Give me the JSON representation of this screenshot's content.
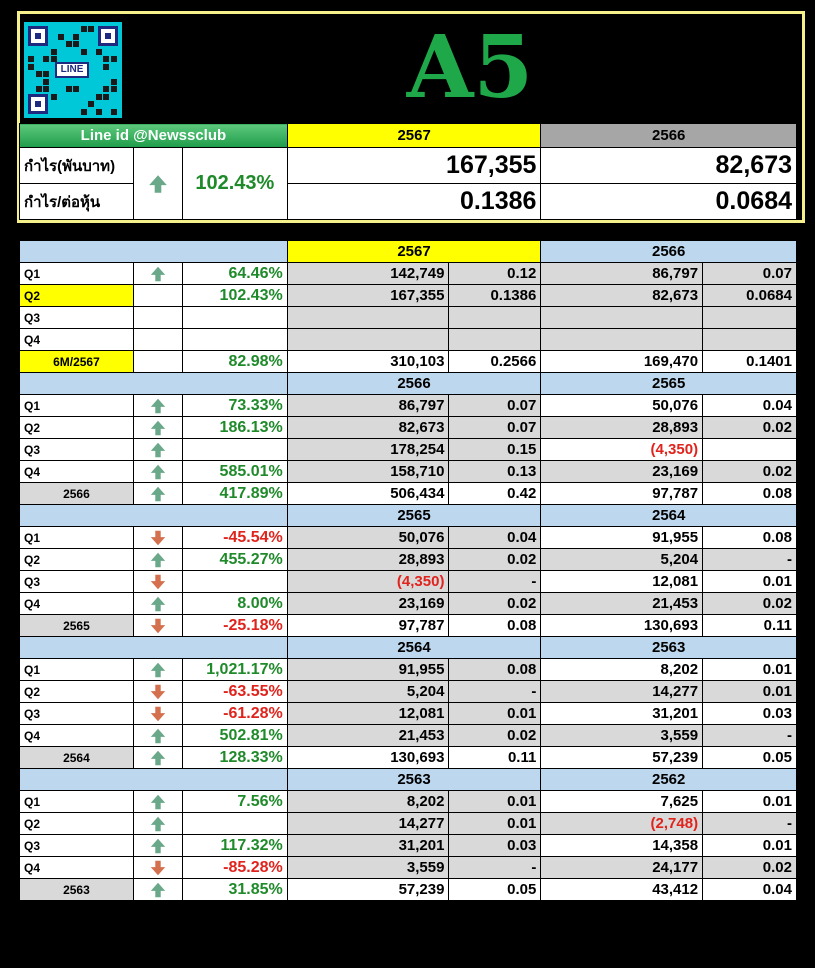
{
  "header": {
    "qr_label": "LINE",
    "title": "A5",
    "line_id": "Line id @Newssclub",
    "year_current": "2567",
    "year_prev": "2566",
    "row1_label": "กำไร(พันบาท)",
    "row2_label": "กำไร/ต่อหุ้น",
    "change_pct": "102.43%",
    "change_dir": "up",
    "profit_current": "167,355",
    "profit_prev": "82,673",
    "eps_current": "0.1386",
    "eps_prev": "0.0684"
  },
  "colors": {
    "up_arrow": "#6aa88a",
    "down_arrow": "#d4704d",
    "positive": "#1f8a2a",
    "negative": "#e0231c",
    "header_blue": "#bdd7ee",
    "highlight": "#ffff00"
  },
  "sections": [
    {
      "year_a": "2567",
      "year_b": "2566",
      "highlight": true,
      "rows": [
        {
          "label": "Q1",
          "label_style": "plain",
          "dir": "up",
          "pct": "64.46%",
          "pct_color": "pg",
          "a": "142,749",
          "ae": "0.12",
          "b": "86,797",
          "be": "0.07"
        },
        {
          "label": "Q2",
          "label_style": "yellow",
          "dir": "",
          "pct": "102.43%",
          "pct_color": "pg",
          "a": "167,355",
          "ae": "0.1386",
          "b": "82,673",
          "be": "0.0684"
        },
        {
          "label": "Q3",
          "label_style": "plain",
          "dir": "",
          "pct": "",
          "pct_color": "pg",
          "a": "",
          "ae": "",
          "b": "",
          "be": ""
        },
        {
          "label": "Q4",
          "label_style": "plain",
          "dir": "",
          "pct": "",
          "pct_color": "pg",
          "a": "",
          "ae": "",
          "b": "",
          "be": ""
        },
        {
          "label": "6M/2567",
          "label_style": "total-yellow",
          "dir": "",
          "pct": "82.98%",
          "pct_color": "pg",
          "a": "310,103",
          "ae": "0.2566",
          "b": "169,470",
          "be": "0.1401"
        }
      ]
    },
    {
      "year_a": "2566",
      "year_b": "2565",
      "highlight": false,
      "rows": [
        {
          "label": "Q1",
          "label_style": "plain",
          "dir": "up",
          "pct": "73.33%",
          "pct_color": "pg",
          "a": "86,797",
          "ae": "0.07",
          "b": "50,076",
          "be": "0.04"
        },
        {
          "label": "Q2",
          "label_style": "plain",
          "dir": "up",
          "pct": "186.13%",
          "pct_color": "pg",
          "a": "82,673",
          "ae": "0.07",
          "b": "28,893",
          "be": "0.02"
        },
        {
          "label": "Q3",
          "label_style": "plain",
          "dir": "up",
          "pct": "",
          "pct_color": "pg",
          "a": "178,254",
          "ae": "0.15",
          "b": "(4,350)",
          "be": ""
        },
        {
          "label": "Q4",
          "label_style": "plain",
          "dir": "up",
          "pct": "585.01%",
          "pct_color": "pg",
          "a": "158,710",
          "ae": "0.13",
          "b": "23,169",
          "be": "0.02"
        },
        {
          "label": "2566",
          "label_style": "total",
          "dir": "up",
          "pct": "417.89%",
          "pct_color": "pg",
          "a": "506,434",
          "ae": "0.42",
          "b": "97,787",
          "be": "0.08"
        }
      ]
    },
    {
      "year_a": "2565",
      "year_b": "2564",
      "highlight": false,
      "rows": [
        {
          "label": "Q1",
          "label_style": "plain",
          "dir": "down",
          "pct": "-45.54%",
          "pct_color": "pr",
          "a": "50,076",
          "ae": "0.04",
          "b": "91,955",
          "be": "0.08"
        },
        {
          "label": "Q2",
          "label_style": "plain",
          "dir": "up",
          "pct": "455.27%",
          "pct_color": "pg",
          "a": "28,893",
          "ae": "0.02",
          "b": "5,204",
          "be": "-"
        },
        {
          "label": "Q3",
          "label_style": "plain",
          "dir": "down",
          "pct": "",
          "pct_color": "pg",
          "a": "(4,350)",
          "ae": "-",
          "b": "12,081",
          "be": "0.01"
        },
        {
          "label": "Q4",
          "label_style": "plain",
          "dir": "up",
          "pct": "8.00%",
          "pct_color": "pg",
          "a": "23,169",
          "ae": "0.02",
          "b": "21,453",
          "be": "0.02"
        },
        {
          "label": "2565",
          "label_style": "total",
          "dir": "down",
          "pct": "-25.18%",
          "pct_color": "pr",
          "a": "97,787",
          "ae": "0.08",
          "b": "130,693",
          "be": "0.11"
        }
      ]
    },
    {
      "year_a": "2564",
      "year_b": "2563",
      "highlight": false,
      "rows": [
        {
          "label": "Q1",
          "label_style": "plain",
          "dir": "up",
          "pct": "1,021.17%",
          "pct_color": "pg",
          "a": "91,955",
          "ae": "0.08",
          "b": "8,202",
          "be": "0.01"
        },
        {
          "label": "Q2",
          "label_style": "plain",
          "dir": "down",
          "pct": "-63.55%",
          "pct_color": "pr",
          "a": "5,204",
          "ae": "-",
          "b": "14,277",
          "be": "0.01"
        },
        {
          "label": "Q3",
          "label_style": "plain",
          "dir": "down",
          "pct": "-61.28%",
          "pct_color": "pr",
          "a": "12,081",
          "ae": "0.01",
          "b": "31,201",
          "be": "0.03"
        },
        {
          "label": "Q4",
          "label_style": "plain",
          "dir": "up",
          "pct": "502.81%",
          "pct_color": "pg",
          "a": "21,453",
          "ae": "0.02",
          "b": "3,559",
          "be": "-"
        },
        {
          "label": "2564",
          "label_style": "total",
          "dir": "up",
          "pct": "128.33%",
          "pct_color": "pg",
          "a": "130,693",
          "ae": "0.11",
          "b": "57,239",
          "be": "0.05"
        }
      ]
    },
    {
      "year_a": "2563",
      "year_b": "2562",
      "highlight": false,
      "rows": [
        {
          "label": "Q1",
          "label_style": "plain",
          "dir": "up",
          "pct": "7.56%",
          "pct_color": "pg",
          "a": "8,202",
          "ae": "0.01",
          "b": "7,625",
          "be": "0.01"
        },
        {
          "label": "Q2",
          "label_style": "plain",
          "dir": "up",
          "pct": "",
          "pct_color": "pg",
          "a": "14,277",
          "ae": "0.01",
          "b": "(2,748)",
          "be": "-"
        },
        {
          "label": "Q3",
          "label_style": "plain",
          "dir": "up",
          "pct": "117.32%",
          "pct_color": "pg",
          "a": "31,201",
          "ae": "0.03",
          "b": "14,358",
          "be": "0.01"
        },
        {
          "label": "Q4",
          "label_style": "plain",
          "dir": "down",
          "pct": "-85.28%",
          "pct_color": "pr",
          "a": "3,559",
          "ae": "-",
          "b": "24,177",
          "be": "0.02"
        },
        {
          "label": "2563",
          "label_style": "total",
          "dir": "up",
          "pct": "31.85%",
          "pct_color": "pg",
          "a": "57,239",
          "ae": "0.05",
          "b": "43,412",
          "be": "0.04"
        }
      ]
    }
  ]
}
